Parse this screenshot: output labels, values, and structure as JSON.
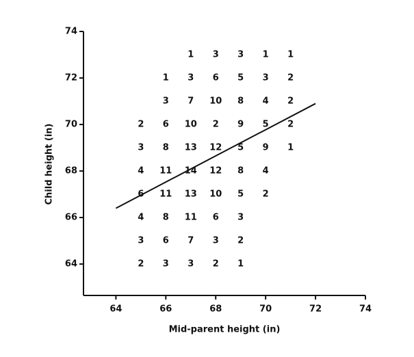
{
  "chart_data": {
    "type": "scatter",
    "xlabel": "Mid-parent height (in)",
    "ylabel": "Child height (in)",
    "xlim": [
      62.7,
      74
    ],
    "ylim": [
      62.65,
      74
    ],
    "xticks": [
      64,
      66,
      68,
      70,
      72,
      74
    ],
    "yticks": [
      64,
      66,
      68,
      70,
      72,
      74
    ],
    "x": [
      67,
      68,
      69,
      70,
      71,
      66,
      67,
      68,
      69,
      70,
      71,
      66,
      67,
      68,
      69,
      70,
      71,
      65,
      66,
      67,
      68,
      69,
      70,
      71,
      65,
      66,
      67,
      68,
      69,
      70,
      71,
      65,
      66,
      67,
      68,
      69,
      70,
      65,
      66,
      67,
      68,
      69,
      70,
      65,
      66,
      67,
      68,
      69,
      65,
      66,
      67,
      68,
      69,
      65,
      66,
      67,
      68,
      69
    ],
    "y": [
      73,
      73,
      73,
      73,
      73,
      72,
      72,
      72,
      72,
      72,
      72,
      71,
      71,
      71,
      71,
      71,
      71,
      70,
      70,
      70,
      70,
      70,
      70,
      70,
      69,
      69,
      69,
      69,
      69,
      69,
      69,
      68,
      68,
      68,
      68,
      68,
      68,
      67,
      67,
      67,
      67,
      67,
      67,
      66,
      66,
      66,
      66,
      66,
      65,
      65,
      65,
      65,
      65,
      64,
      64,
      64,
      64,
      64
    ],
    "values": [
      1,
      3,
      3,
      1,
      1,
      1,
      3,
      6,
      5,
      3,
      2,
      3,
      7,
      10,
      8,
      4,
      2,
      2,
      6,
      10,
      2,
      9,
      5,
      2,
      3,
      8,
      13,
      12,
      5,
      9,
      1,
      4,
      11,
      14,
      12,
      8,
      4,
      6,
      11,
      13,
      10,
      5,
      2,
      4,
      8,
      11,
      6,
      3,
      3,
      6,
      7,
      3,
      2,
      2,
      3,
      3,
      2,
      1
    ],
    "color": "#111111",
    "line": {
      "x": [
        64,
        72
      ],
      "y": [
        66.4,
        70.9
      ],
      "color": "#111111"
    }
  }
}
